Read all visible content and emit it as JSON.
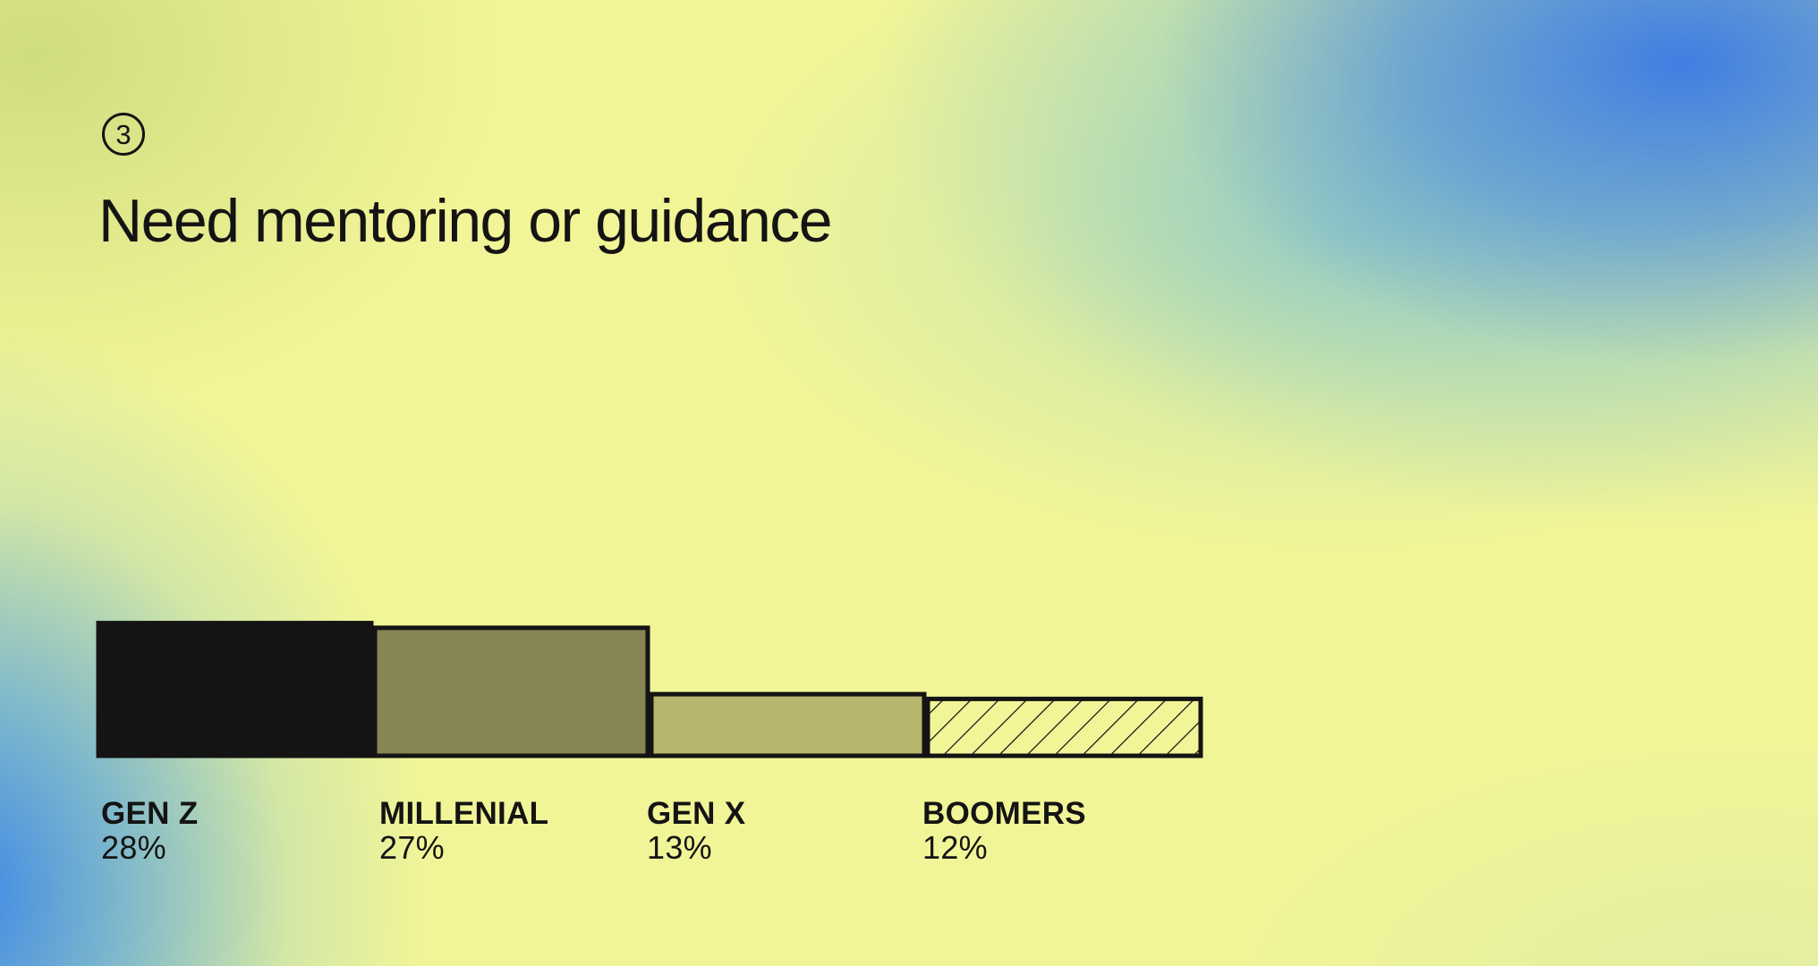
{
  "step": "3",
  "title": "Need mentoring or guidance",
  "chart_data": {
    "type": "bar",
    "categories": [
      "GEN Z",
      "MILLENIAL",
      "GEN X",
      "BOOMERS"
    ],
    "values": [
      28,
      27,
      13,
      12
    ],
    "value_labels": [
      "28%",
      "27%",
      "13%",
      "12%"
    ],
    "unit": "%",
    "title": "Need mentoring or guidance",
    "xlabel": "",
    "ylabel": "",
    "grid": false,
    "legend": "none",
    "colors": [
      "#141414",
      "#868553",
      "#b8b56c",
      "hatched"
    ]
  }
}
